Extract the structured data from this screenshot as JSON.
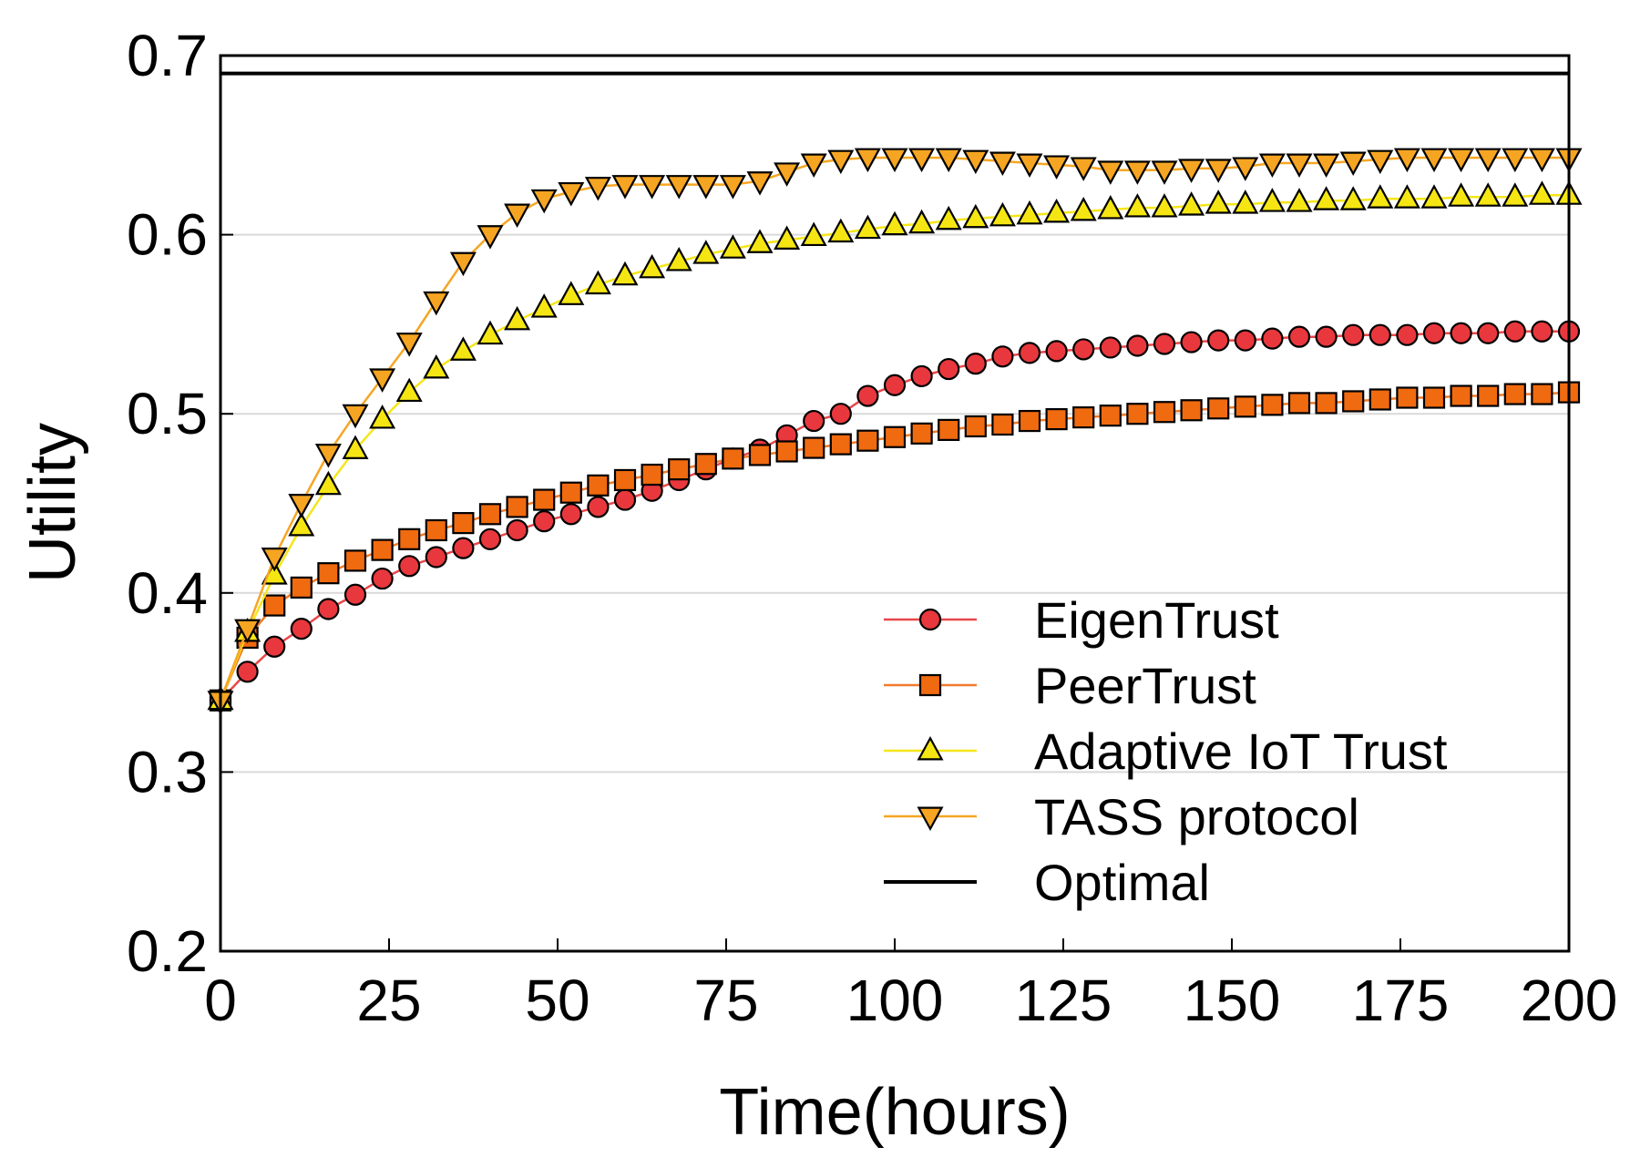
{
  "chart_data": {
    "type": "line",
    "title": "",
    "xlabel": "Time(hours)",
    "ylabel": "Utility",
    "xlim": [
      0,
      200
    ],
    "ylim": [
      0.2,
      0.7
    ],
    "xticks": [
      0,
      25,
      50,
      75,
      100,
      125,
      150,
      175,
      200
    ],
    "xtick_labels": [
      "0",
      "25",
      "50",
      "75",
      "100",
      "125",
      "150",
      "175",
      "200"
    ],
    "yticks": [
      0.2,
      0.3,
      0.4,
      0.5,
      0.6,
      0.7
    ],
    "ytick_labels": [
      "0.2",
      "0.3",
      "0.4",
      "0.5",
      "0.6",
      "0.7"
    ],
    "grid": "horizontal",
    "legend_position": "bottom-right",
    "x": [
      0,
      4,
      8,
      12,
      16,
      20,
      24,
      28,
      32,
      36,
      40,
      44,
      48,
      52,
      56,
      60,
      64,
      68,
      72,
      76,
      80,
      84,
      88,
      92,
      96,
      100,
      104,
      108,
      112,
      116,
      120,
      124,
      128,
      132,
      136,
      140,
      144,
      148,
      152,
      156,
      160,
      164,
      168,
      172,
      176,
      180,
      184,
      188,
      192,
      196,
      200
    ],
    "series": [
      {
        "name": "EigenTrust",
        "marker": "circle",
        "line_color": "#e8474a",
        "marker_fill": "#e8383d",
        "values": [
          0.34,
          0.356,
          0.37,
          0.38,
          0.391,
          0.399,
          0.408,
          0.415,
          0.42,
          0.425,
          0.43,
          0.435,
          0.44,
          0.444,
          0.448,
          0.452,
          0.457,
          0.463,
          0.469,
          0.475,
          0.48,
          0.488,
          0.496,
          0.5,
          0.51,
          0.516,
          0.521,
          0.525,
          0.528,
          0.532,
          0.534,
          0.535,
          0.536,
          0.537,
          0.538,
          0.539,
          0.54,
          0.541,
          0.541,
          0.542,
          0.543,
          0.543,
          0.544,
          0.544,
          0.544,
          0.545,
          0.545,
          0.545,
          0.546,
          0.546,
          0.546
        ]
      },
      {
        "name": "PeerTrust",
        "marker": "square",
        "line_color": "#f07b2a",
        "marker_fill": "#f06a10",
        "values": [
          0.34,
          0.375,
          0.393,
          0.403,
          0.411,
          0.418,
          0.424,
          0.43,
          0.435,
          0.439,
          0.444,
          0.448,
          0.452,
          0.456,
          0.46,
          0.463,
          0.466,
          0.469,
          0.472,
          0.475,
          0.477,
          0.479,
          0.481,
          0.483,
          0.485,
          0.487,
          0.489,
          0.491,
          0.493,
          0.494,
          0.496,
          0.497,
          0.498,
          0.499,
          0.5,
          0.501,
          0.502,
          0.503,
          0.504,
          0.505,
          0.506,
          0.506,
          0.507,
          0.508,
          0.509,
          0.509,
          0.51,
          0.51,
          0.511,
          0.511,
          0.512
        ]
      },
      {
        "name": "Adaptive IoT Trust",
        "marker": "triangle-up",
        "line_color": "#f5e61a",
        "marker_fill": "#f5e613",
        "values": [
          0.34,
          0.378,
          0.41,
          0.437,
          0.46,
          0.48,
          0.497,
          0.512,
          0.525,
          0.535,
          0.544,
          0.552,
          0.559,
          0.566,
          0.572,
          0.577,
          0.581,
          0.585,
          0.589,
          0.592,
          0.595,
          0.597,
          0.599,
          0.601,
          0.603,
          0.605,
          0.606,
          0.608,
          0.609,
          0.61,
          0.611,
          0.612,
          0.613,
          0.614,
          0.615,
          0.615,
          0.616,
          0.617,
          0.617,
          0.618,
          0.618,
          0.619,
          0.619,
          0.62,
          0.62,
          0.62,
          0.621,
          0.621,
          0.621,
          0.622,
          0.622
        ]
      },
      {
        "name": "TASS protocol",
        "marker": "triangle-down",
        "line_color": "#f5a623",
        "marker_fill": "#f5a522",
        "values": [
          0.34,
          0.38,
          0.42,
          0.45,
          0.478,
          0.5,
          0.52,
          0.54,
          0.563,
          0.585,
          0.6,
          0.612,
          0.62,
          0.624,
          0.627,
          0.628,
          0.628,
          0.628,
          0.628,
          0.628,
          0.63,
          0.635,
          0.64,
          0.642,
          0.643,
          0.643,
          0.643,
          0.643,
          0.642,
          0.641,
          0.64,
          0.639,
          0.638,
          0.636,
          0.636,
          0.636,
          0.637,
          0.637,
          0.638,
          0.64,
          0.64,
          0.64,
          0.641,
          0.642,
          0.643,
          0.643,
          0.643,
          0.643,
          0.643,
          0.643,
          0.643
        ]
      },
      {
        "name": "Optimal",
        "marker": "none",
        "line_color": "#000000",
        "values_constant": 0.69
      }
    ]
  }
}
